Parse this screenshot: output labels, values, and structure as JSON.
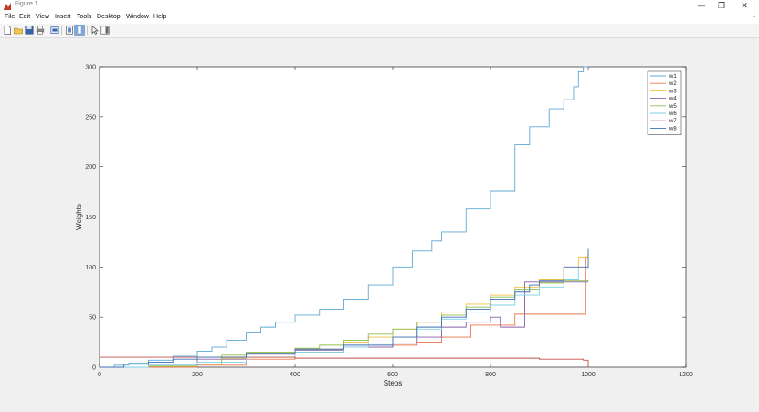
{
  "window": {
    "title": "Figure 1",
    "minimize": "—",
    "restore": "❐",
    "close": "✕"
  },
  "menu": [
    "File",
    "Edit",
    "View",
    "Insert",
    "Tools",
    "Desktop",
    "Window",
    "Help"
  ],
  "menu_overflow": "▾",
  "toolbar": [
    {
      "icon": "new-figure-icon"
    },
    {
      "icon": "open-file-icon"
    },
    {
      "icon": "save-icon"
    },
    {
      "icon": "print-icon"
    },
    {
      "icon": "link-plot-icon"
    },
    {
      "icon": "hide-plot-tools-icon"
    },
    {
      "icon": "show-plot-tools-icon"
    },
    {
      "icon": "edit-plot-icon"
    },
    {
      "icon": "insert-colorbar-icon"
    }
  ],
  "chart_data": {
    "type": "line",
    "xlabel": "Steps",
    "ylabel": "Weights",
    "xlim": [
      0,
      1200
    ],
    "ylim": [
      0,
      300
    ],
    "xticks": [
      0,
      200,
      400,
      600,
      800,
      1000,
      1200
    ],
    "yticks": [
      0,
      50,
      100,
      150,
      200,
      250,
      300
    ],
    "grid": false,
    "legend_position": "top-right",
    "series": [
      {
        "name": "w1",
        "color": "#5fa8d3",
        "x": [
          0,
          30,
          60,
          100,
          150,
          200,
          230,
          260,
          300,
          330,
          360,
          400,
          450,
          500,
          550,
          600,
          640,
          680,
          700,
          750,
          800,
          850,
          880,
          920,
          950,
          970,
          980,
          990,
          1000
        ],
        "y": [
          0,
          2,
          4,
          7,
          11,
          16,
          20,
          27,
          35,
          40,
          45,
          52,
          58,
          68,
          82,
          100,
          116,
          126,
          135,
          158,
          176,
          222,
          240,
          258,
          267,
          280,
          295,
          300,
          300
        ]
      },
      {
        "name": "w2",
        "color": "#e8764a",
        "x": [
          0,
          100,
          200,
          300,
          400,
          500,
          600,
          650,
          700,
          740,
          760,
          800,
          850,
          870,
          900,
          950,
          970,
          985,
          995,
          1000
        ],
        "y": [
          0,
          0,
          2,
          8,
          15,
          20,
          22,
          25,
          30,
          30,
          42,
          42,
          53,
          53,
          53,
          53,
          53,
          53,
          110,
          110
        ]
      },
      {
        "name": "w3",
        "color": "#f0c040",
        "x": [
          0,
          100,
          200,
          250,
          300,
          400,
          500,
          550,
          600,
          650,
          700,
          750,
          800,
          850,
          900,
          950,
          980,
          1000
        ],
        "y": [
          0,
          1,
          3,
          9,
          14,
          18,
          25,
          30,
          38,
          45,
          55,
          63,
          72,
          80,
          88,
          98,
          110,
          112
        ]
      },
      {
        "name": "w4",
        "color": "#8a5fa8",
        "x": [
          0,
          100,
          200,
          300,
          400,
          500,
          600,
          650,
          700,
          750,
          800,
          820,
          860,
          870,
          900,
          950,
          1000
        ],
        "y": [
          0,
          3,
          8,
          13,
          17,
          20,
          24,
          30,
          40,
          45,
          50,
          40,
          40,
          85,
          85,
          85,
          85
        ]
      },
      {
        "name": "w5",
        "color": "#8fbf4a",
        "x": [
          0,
          100,
          200,
          250,
          300,
          400,
          450,
          500,
          550,
          600,
          650,
          700,
          750,
          800,
          850,
          900,
          950,
          1000
        ],
        "y": [
          0,
          1,
          3,
          12,
          15,
          19,
          22,
          27,
          33,
          38,
          45,
          52,
          60,
          70,
          78,
          84,
          86,
          87
        ]
      },
      {
        "name": "w6",
        "color": "#7ed3e8",
        "x": [
          0,
          100,
          200,
          300,
          400,
          500,
          550,
          600,
          650,
          700,
          750,
          800,
          850,
          900,
          950,
          980,
          1000
        ],
        "y": [
          0,
          2,
          5,
          10,
          15,
          20,
          24,
          30,
          38,
          48,
          55,
          62,
          72,
          80,
          88,
          98,
          100
        ]
      },
      {
        "name": "w7",
        "color": "#c0504d",
        "x": [
          0,
          100,
          200,
          300,
          400,
          500,
          600,
          700,
          800,
          900,
          950,
          990,
          1000
        ],
        "y": [
          10,
          10,
          10,
          10,
          9,
          9,
          9,
          9,
          9,
          8,
          8,
          7,
          0
        ]
      },
      {
        "name": "w8",
        "color": "#3f6fb5",
        "x": [
          0,
          50,
          100,
          150,
          200,
          300,
          400,
          500,
          600,
          650,
          700,
          750,
          800,
          850,
          880,
          900,
          950,
          1000
        ],
        "y": [
          0,
          3,
          5,
          8,
          10,
          14,
          18,
          22,
          30,
          40,
          50,
          58,
          68,
          75,
          82,
          86,
          100,
          118
        ]
      }
    ]
  }
}
